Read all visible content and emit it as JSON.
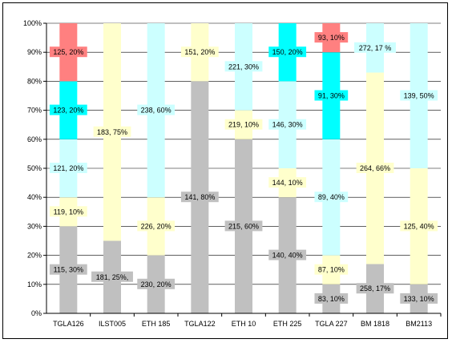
{
  "chart_data": {
    "type": "bar",
    "stacked": true,
    "percent": true,
    "ylim": [
      0,
      100
    ],
    "ytick_labels": [
      "0%",
      "10%",
      "20%",
      "30%",
      "40%",
      "50%",
      "60%",
      "70%",
      "80%",
      "90%",
      "100%"
    ],
    "grid": true,
    "categories": [
      "TGLA126",
      "ILST005",
      "ETH 185",
      "TGLA122",
      "ETH 10",
      "ETH 225",
      "TGLA 227",
      "BM 1818",
      "BM2113"
    ],
    "colors": {
      "gray": "#c0c0c0",
      "yellow": "#ffffcc",
      "lightcyan": "#ccffff",
      "cyan": "#00ffff",
      "red": "#ff8080"
    },
    "stacks": [
      [
        {
          "value": 30,
          "label": "115, 30%",
          "color": "gray"
        },
        {
          "value": 10,
          "label": "119, 10%",
          "color": "yellow"
        },
        {
          "value": 20,
          "label": "121, 20%",
          "color": "lightcyan"
        },
        {
          "value": 20,
          "label": "123, 20%",
          "color": "cyan"
        },
        {
          "value": 20,
          "label": "125, 20%",
          "color": "red"
        }
      ],
      [
        {
          "value": 25,
          "label": "181, 25%,",
          "color": "gray"
        },
        {
          "value": 75,
          "label": "183, 75%",
          "color": "yellow"
        }
      ],
      [
        {
          "value": 20,
          "label": "230, 20%",
          "color": "gray"
        },
        {
          "value": 20,
          "label": "226, 20%",
          "color": "yellow"
        },
        {
          "value": 60,
          "label": "238, 60%",
          "color": "lightcyan"
        }
      ],
      [
        {
          "value": 80,
          "label": "141, 80%",
          "color": "gray"
        },
        {
          "value": 20,
          "label": "151, 20%",
          "color": "yellow"
        }
      ],
      [
        {
          "value": 60,
          "label": "215, 60%",
          "color": "gray"
        },
        {
          "value": 10,
          "label": "219, 10%",
          "color": "yellow"
        },
        {
          "value": 30,
          "label": "221, 30%",
          "color": "lightcyan"
        }
      ],
      [
        {
          "value": 40,
          "label": "140, 40%",
          "color": "gray"
        },
        {
          "value": 10,
          "label": "144, 10%",
          "color": "yellow"
        },
        {
          "value": 30,
          "label": "146, 30%",
          "color": "lightcyan"
        },
        {
          "value": 20,
          "label": "150, 20%",
          "color": "cyan"
        }
      ],
      [
        {
          "value": 10,
          "label": "83, 10%",
          "color": "gray"
        },
        {
          "value": 10,
          "label": "87, 10%",
          "color": "yellow"
        },
        {
          "value": 40,
          "label": "89, 40%",
          "color": "lightcyan"
        },
        {
          "value": 30,
          "label": "91, 30%",
          "color": "cyan"
        },
        {
          "value": 10,
          "label": "93, 10%",
          "color": "red"
        }
      ],
      [
        {
          "value": 17,
          "label": "258, 17%",
          "color": "gray"
        },
        {
          "value": 66,
          "label": "264, 66%",
          "color": "yellow"
        },
        {
          "value": 17,
          "label": "272, 17 %",
          "color": "lightcyan"
        }
      ],
      [
        {
          "value": 10,
          "label": "133, 10%",
          "color": "gray"
        },
        {
          "value": 40,
          "label": "125, 40%",
          "color": "yellow"
        },
        {
          "value": 50,
          "label": "139, 50%",
          "color": "lightcyan"
        }
      ]
    ]
  }
}
